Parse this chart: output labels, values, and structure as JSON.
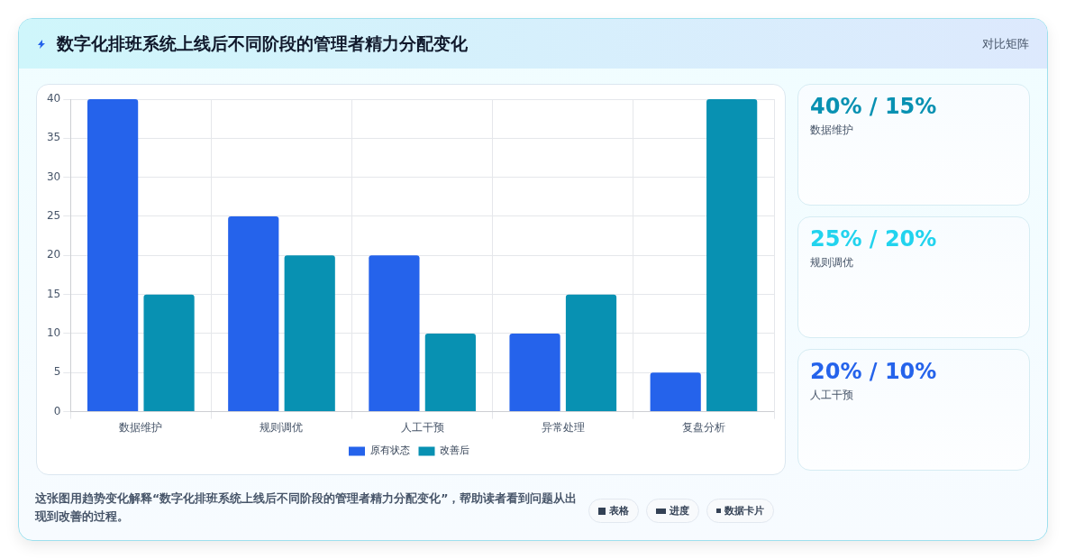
{
  "chart_data": [
    {
      "type": "bar",
      "title": "数字化排班系统上线后不同阶段的管理者精力分配变化",
      "categories": [
        "数据维护",
        "规则调优",
        "人工干预",
        "异常处理",
        "复盘分析"
      ],
      "series": [
        {
          "name": "原有状态",
          "color": "#2563eb",
          "values": [
            40,
            25,
            20,
            10,
            5
          ]
        },
        {
          "name": "改善后",
          "color": "#0891b2",
          "values": [
            15,
            20,
            10,
            15,
            40
          ]
        }
      ],
      "ylim": [
        0,
        40
      ],
      "yticks": [
        0,
        5,
        10,
        15,
        20,
        25,
        30,
        35,
        40
      ],
      "grid": true,
      "legend": "bottom",
      "annotations": [
        "这张图用趋势变化解释“数字化排班系统上线后不同阶段的管理者精力分配变化”，帮助读者看到问题从出现到改善的过程。",
        "表格",
        "进度",
        "数据卡片"
      ]
    },
    {
      "type": "other",
      "title": "对比矩阵",
      "annotations": [
        "40% / 15%",
        "数据维护",
        "25% / 20%",
        "规则调优",
        "20% / 10%",
        "人工干预"
      ]
    }
  ]
}
